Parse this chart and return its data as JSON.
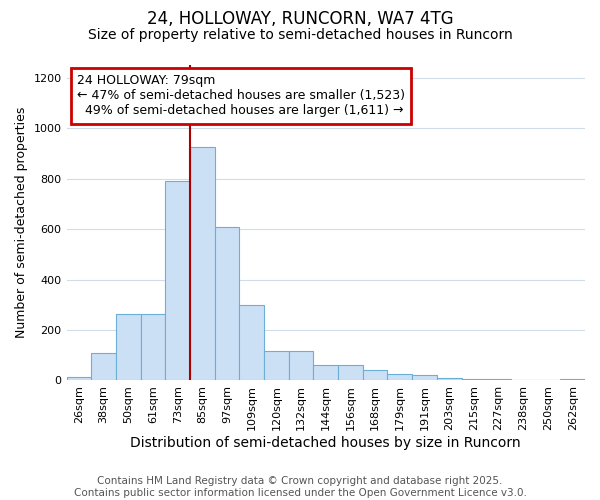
{
  "title": "24, HOLLOWAY, RUNCORN, WA7 4TG",
  "subtitle": "Size of property relative to semi-detached houses in Runcorn",
  "xlabel": "Distribution of semi-detached houses by size in Runcorn",
  "ylabel": "Number of semi-detached properties",
  "categories": [
    "26sqm",
    "38sqm",
    "50sqm",
    "61sqm",
    "73sqm",
    "85sqm",
    "97sqm",
    "109sqm",
    "120sqm",
    "132sqm",
    "144sqm",
    "156sqm",
    "168sqm",
    "179sqm",
    "191sqm",
    "203sqm",
    "215sqm",
    "227sqm",
    "238sqm",
    "250sqm",
    "262sqm"
  ],
  "values": [
    15,
    110,
    265,
    265,
    790,
    925,
    610,
    300,
    115,
    115,
    60,
    60,
    40,
    25,
    20,
    10,
    5,
    4,
    3,
    3,
    5
  ],
  "bar_color": "#cce0f5",
  "bar_edge_color": "#6baed6",
  "background_color": "#ffffff",
  "grid_color": "#d0dce8",
  "ylim": [
    0,
    1250
  ],
  "yticks": [
    0,
    200,
    400,
    600,
    800,
    1000,
    1200
  ],
  "vline_x_index": 5,
  "vline_color": "#aa0000",
  "annotation_box_color": "#ffffff",
  "annotation_box_edge": "#cc0000",
  "property_label": "24 HOLLOWAY: 79sqm",
  "smaller_pct": "47%",
  "smaller_count": "1,523",
  "larger_pct": "49%",
  "larger_count": "1,611",
  "footer_line1": "Contains HM Land Registry data © Crown copyright and database right 2025.",
  "footer_line2": "Contains public sector information licensed under the Open Government Licence v3.0.",
  "title_fontsize": 12,
  "subtitle_fontsize": 10,
  "xlabel_fontsize": 10,
  "ylabel_fontsize": 9,
  "tick_fontsize": 8,
  "footer_fontsize": 7.5,
  "annotation_fontsize": 9
}
